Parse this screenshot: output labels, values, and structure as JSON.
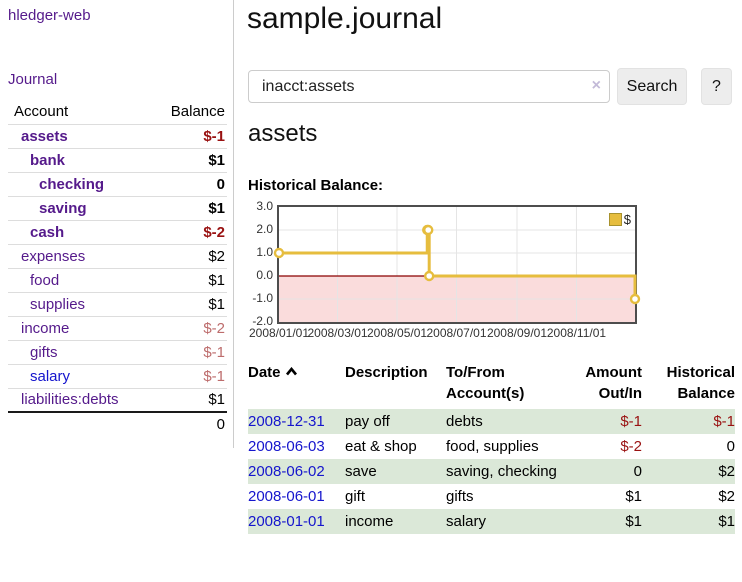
{
  "app": {
    "brand": "hledger-web"
  },
  "colors": {
    "link_purple": "#551a8b",
    "link_blue": "#1515cd",
    "negative_strong": "#991111",
    "negative_dim": "#bd6c6c",
    "row_green": "#dbe8d8",
    "chart_gold": "#e6bd3e"
  },
  "icons": {
    "search_clear": "×",
    "sort_ascending": "chevron-up"
  },
  "sidebar": {
    "nav": {
      "journal": "Journal"
    },
    "accounts": {
      "headers": {
        "account": "Account",
        "balance": "Balance"
      },
      "rows": [
        {
          "name": "assets",
          "level": 1,
          "balance": "$-1",
          "bold": true,
          "balance_style": "neg-strong",
          "link_style": "visited"
        },
        {
          "name": "bank",
          "level": 2,
          "balance": "$1",
          "bold": true,
          "balance_style": "pos",
          "link_style": "visited"
        },
        {
          "name": "checking",
          "level": 3,
          "balance": "0",
          "bold": true,
          "balance_style": "pos",
          "link_style": "visited"
        },
        {
          "name": "saving",
          "level": 3,
          "balance": "$1",
          "bold": true,
          "balance_style": "pos",
          "link_style": "visited"
        },
        {
          "name": "cash",
          "level": 2,
          "balance": "$-2",
          "bold": true,
          "balance_style": "neg-strong",
          "link_style": "visited"
        },
        {
          "name": "expenses",
          "level": 1,
          "balance": "$2",
          "bold": false,
          "balance_style": "pos",
          "link_style": "visited"
        },
        {
          "name": "food",
          "level": 2,
          "balance": "$1",
          "bold": false,
          "balance_style": "pos",
          "link_style": "visited"
        },
        {
          "name": "supplies",
          "level": 2,
          "balance": "$1",
          "bold": false,
          "balance_style": "pos",
          "link_style": "visited"
        },
        {
          "name": "income",
          "level": 1,
          "balance": "$-2",
          "bold": false,
          "balance_style": "neg-dim",
          "link_style": "visited"
        },
        {
          "name": "gifts",
          "level": 2,
          "balance": "$-1",
          "bold": false,
          "balance_style": "neg-dim",
          "link_style": "visited"
        },
        {
          "name": "salary",
          "level": 2,
          "balance": "$-1",
          "bold": false,
          "balance_style": "neg-dim",
          "link_style": "unvisited"
        },
        {
          "name": "liabilities:debts",
          "level": 1,
          "balance": "$1",
          "bold": false,
          "balance_style": "pos",
          "link_style": "visited"
        }
      ],
      "total": "0"
    }
  },
  "main": {
    "title": "sample.journal",
    "search": {
      "value": "inacct:assets",
      "button": "Search",
      "help_button": "?"
    },
    "account_heading": "assets",
    "chart_label": "Historical Balance:"
  },
  "chart_data": {
    "type": "line",
    "step": true,
    "title": "Historical Balance:",
    "x_range": [
      "2008-01-01",
      "2008-12-31"
    ],
    "x_tick_dates": [
      "2008-01-01",
      "2008-03-01",
      "2008-05-01",
      "2008-07-01",
      "2008-09-01",
      "2008-11-01"
    ],
    "x_tick_labels": [
      "2008/01/01",
      "2008/03/01",
      "2008/05/01",
      "2008/07/01",
      "2008/09/01",
      "2008/11/01"
    ],
    "y_ticks": [
      "3.0",
      "2.0",
      "1.0",
      "0.0",
      "-1.0",
      "-2.0"
    ],
    "ylim": [
      -2,
      3
    ],
    "legend": {
      "label": "$",
      "position": "top-right"
    },
    "series": [
      {
        "name": "$",
        "color": "#e6bd3e",
        "marker": "circle",
        "points": [
          {
            "date": "2008-01-01",
            "value": 1
          },
          {
            "date": "2008-06-01",
            "value": 2
          },
          {
            "date": "2008-06-02",
            "value": 2
          },
          {
            "date": "2008-06-03",
            "value": 0
          },
          {
            "date": "2008-12-31",
            "value": -1
          }
        ]
      }
    ],
    "negative_region_fill": "#fadcdc",
    "zero_line_color": "#8b0000",
    "grid_color": "#e5e5e5",
    "border_color": "#4d4d4d",
    "grid": true
  },
  "register": {
    "headers": {
      "date": "Date",
      "description": "Description",
      "account_line1": "To/From",
      "account_line2": "Account(s)",
      "amount_line1": "Amount",
      "amount_line2": "Out/In",
      "balance_line1": "Historical",
      "balance_line2": "Balance"
    },
    "rows": [
      {
        "date": "2008-12-31",
        "description": "pay off",
        "accounts": "debts",
        "amount": "$-1",
        "balance": "$-1",
        "shade": true
      },
      {
        "date": "2008-06-03",
        "description": "eat & shop",
        "accounts": "food, supplies",
        "amount": "$-2",
        "balance": "0",
        "shade": false
      },
      {
        "date": "2008-06-02",
        "description": "save",
        "accounts": "saving, checking",
        "amount": "0",
        "balance": "$2",
        "shade": true
      },
      {
        "date": "2008-06-01",
        "description": "gift",
        "accounts": "gifts",
        "amount": "$1",
        "balance": "$2",
        "shade": false
      },
      {
        "date": "2008-01-01",
        "description": "income",
        "accounts": "salary",
        "amount": "$1",
        "balance": "$1",
        "shade": true
      }
    ]
  }
}
